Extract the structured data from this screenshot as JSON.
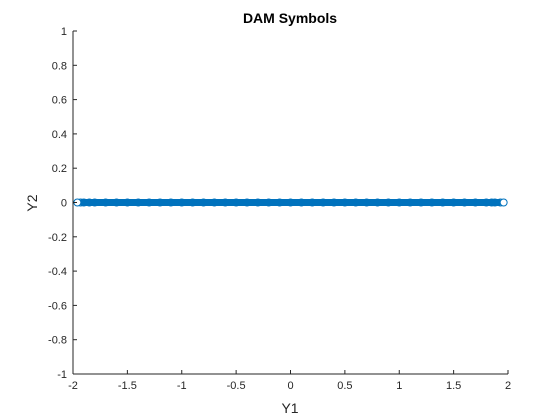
{
  "chart_data": {
    "type": "scatter",
    "title": "DAM Symbols",
    "xlabel": "Y1",
    "ylabel": "Y2",
    "xlim": [
      -2,
      2
    ],
    "ylim": [
      -1,
      1
    ],
    "xticks": [
      -2,
      -1.5,
      -1,
      -0.5,
      0,
      0.5,
      1,
      1.5,
      2
    ],
    "xtick_labels": [
      "-2",
      "-1.5",
      "-1",
      "-0.5",
      "0",
      "0.5",
      "1",
      "1.5",
      "2"
    ],
    "yticks": [
      -1,
      -0.8,
      -0.6,
      -0.4,
      -0.2,
      0,
      0.2,
      0.4,
      0.6,
      0.8,
      1
    ],
    "ytick_labels": [
      "-1",
      "-0.8",
      "-0.6",
      "-0.4",
      "-0.2",
      "0",
      "0.2",
      "0.4",
      "0.6",
      "0.8",
      "1"
    ],
    "grid": false,
    "marker": "open-circle",
    "color": "#0072BD",
    "series": [
      {
        "x_range": [
          -1.93,
          1.93
        ],
        "y": 0,
        "x": [
          -1.93,
          -1.9,
          -1.85,
          -1.8,
          -1.7,
          -1.6,
          -1.5,
          -1.4,
          -1.3,
          -1.2,
          -1.1,
          -1.0,
          -0.9,
          -0.8,
          -0.7,
          -0.6,
          -0.5,
          -0.4,
          -0.3,
          -0.2,
          -0.1,
          0,
          0.1,
          0.2,
          0.3,
          0.4,
          0.5,
          0.6,
          0.7,
          0.8,
          0.9,
          1.0,
          1.1,
          1.2,
          1.3,
          1.4,
          1.5,
          1.6,
          1.7,
          1.8,
          1.85,
          1.88,
          1.93
        ]
      }
    ]
  }
}
